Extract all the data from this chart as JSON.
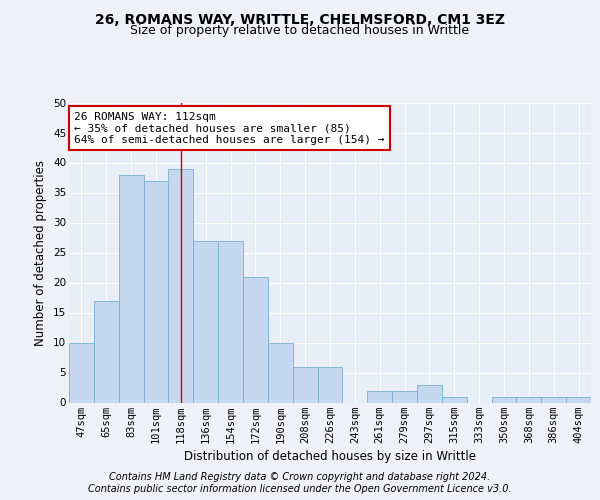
{
  "title1": "26, ROMANS WAY, WRITTLE, CHELMSFORD, CM1 3EZ",
  "title2": "Size of property relative to detached houses in Writtle",
  "xlabel": "Distribution of detached houses by size in Writtle",
  "ylabel": "Number of detached properties",
  "categories": [
    "47sqm",
    "65sqm",
    "83sqm",
    "101sqm",
    "118sqm",
    "136sqm",
    "154sqm",
    "172sqm",
    "190sqm",
    "208sqm",
    "226sqm",
    "243sqm",
    "261sqm",
    "279sqm",
    "297sqm",
    "315sqm",
    "333sqm",
    "350sqm",
    "368sqm",
    "386sqm",
    "404sqm"
  ],
  "values": [
    10,
    17,
    38,
    37,
    39,
    27,
    27,
    21,
    10,
    6,
    6,
    0,
    2,
    2,
    3,
    1,
    0,
    1,
    1,
    1,
    1
  ],
  "bar_color": "#c5d8f0",
  "bar_edge_color": "#7bafd4",
  "vline_index": 4,
  "vline_color": "#cc0000",
  "annotation_text": "26 ROMANS WAY: 112sqm\n← 35% of detached houses are smaller (85)\n64% of semi-detached houses are larger (154) →",
  "annotation_box_color": "#ffffff",
  "annotation_box_edge_color": "#cc0000",
  "ylim": [
    0,
    50
  ],
  "yticks": [
    0,
    5,
    10,
    15,
    20,
    25,
    30,
    35,
    40,
    45,
    50
  ],
  "footer1": "Contains HM Land Registry data © Crown copyright and database right 2024.",
  "footer2": "Contains public sector information licensed under the Open Government Licence v3.0.",
  "bg_color": "#eef2f8",
  "plot_bg_color": "#e8eef6",
  "grid_color": "#ffffff",
  "title1_fontsize": 10,
  "title2_fontsize": 9,
  "tick_fontsize": 7.5,
  "ylabel_fontsize": 8.5,
  "xlabel_fontsize": 8.5,
  "annotation_fontsize": 8,
  "footer_fontsize": 7
}
